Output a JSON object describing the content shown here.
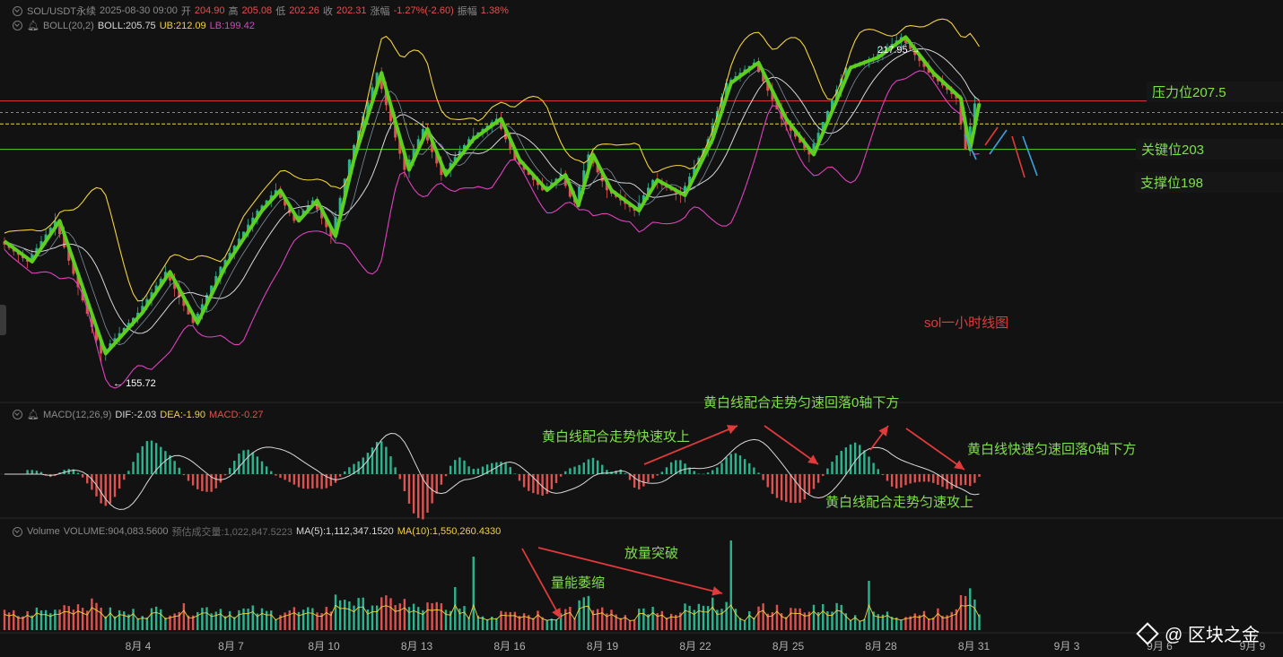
{
  "header": {
    "symbol": "SOL/USDT永续",
    "datetime": "2025-08-30 09:00",
    "open_label": "开",
    "open": "204.90",
    "high_label": "高",
    "high": "205.08",
    "low_label": "低",
    "low": "202.26",
    "close_label": "收",
    "close": "202.31",
    "change_label": "涨幅",
    "change": "-1.27%(-2.60)",
    "amplitude_label": "振幅",
    "amplitude": "1.38%"
  },
  "boll": {
    "name": "BOLL(20,2)",
    "mid": "BOLL:205.75",
    "ub": "UB:212.09",
    "lb": "LB:199.42"
  },
  "macd": {
    "name": "MACD(12,26,9)",
    "dif": "DIF:-2.03",
    "dea": "DEA:-1.90",
    "macd": "MACD:-0.27"
  },
  "volume": {
    "name": "Volume",
    "value": "VOLUME:904,083.5600",
    "est": "预估成交量:1,022,847.5223",
    "ma5": "MA(5):1,112,347.1520",
    "ma10": "MA(10):1,550,260.4330"
  },
  "levels": {
    "resistance": "压力位207.5",
    "key": "关键位203",
    "support": "支撑位198"
  },
  "price_marks": {
    "high": "217.95",
    "low": "155.72"
  },
  "annotations": {
    "chart_title": "sol一小时线图",
    "macd_1": "黄白线配合走势快速攻上",
    "macd_2": "黄白线配合走势匀速回落0轴下方",
    "macd_3": "黄白线快速匀速回落0轴下方",
    "macd_4": "黄白线配合走势匀速攻上",
    "vol_1": "放量突破",
    "vol_2": "量能萎缩"
  },
  "x_axis": [
    "8月 4",
    "8月 7",
    "8月 10",
    "8月 13",
    "8月 16",
    "8月 19",
    "8月 22",
    "8月 25",
    "8月 28",
    "8月 31",
    "9月 3",
    "9月 6",
    "9月 9"
  ],
  "watermark": "@ 区块之金",
  "colors": {
    "background": "#121212",
    "trend": "#5fcf1f",
    "upper_band": "#f2d23c",
    "lower_band": "#e040c0",
    "mid_band": "#d8d8d8",
    "resistance_line": "#e03a3a",
    "key_line": "#f2d23c",
    "support_line": "#5fcf1f",
    "up": "#2bb58f",
    "down": "#e0524f",
    "annotation_green": "#7ee04a",
    "annotation_red": "#e03a3a"
  },
  "chart_data": {
    "type": "line",
    "title": "",
    "x_range": [
      "2025-08-02",
      "2025-09-09"
    ],
    "y_range": [
      150,
      222
    ],
    "series": [
      {
        "values": [
          [
            0,
            180
          ],
          [
            1.5,
            176
          ],
          [
            3,
            184
          ],
          [
            5.5,
            158
          ],
          [
            7.5,
            166
          ],
          [
            9,
            174
          ],
          [
            10.5,
            164
          ],
          [
            12,
            175
          ],
          [
            14,
            186
          ],
          [
            15,
            190
          ],
          [
            16,
            184
          ],
          [
            17,
            188
          ],
          [
            18,
            181
          ],
          [
            19,
            196
          ],
          [
            20.5,
            213
          ],
          [
            22,
            194
          ],
          [
            23,
            202
          ],
          [
            24,
            193
          ],
          [
            25.5,
            200
          ],
          [
            27,
            204
          ],
          [
            28,
            196
          ],
          [
            29.5,
            190
          ],
          [
            30.5,
            193
          ],
          [
            31.2,
            187
          ],
          [
            32,
            197
          ],
          [
            33,
            190
          ],
          [
            34.5,
            186
          ],
          [
            35.5,
            192
          ],
          [
            37,
            189
          ],
          [
            38.5,
            200
          ],
          [
            39.5,
            211
          ],
          [
            41,
            215
          ],
          [
            42.5,
            204
          ],
          [
            44,
            197
          ],
          [
            46,
            214
          ],
          [
            47.5,
            216
          ],
          [
            49,
            220
          ],
          [
            50.5,
            213
          ],
          [
            52,
            208
          ],
          [
            52.5,
            198
          ],
          [
            53,
            207
          ]
        ]
      }
    ],
    "levels": [
      {
        "value": 207.5
      },
      {
        "value": 203
      },
      {
        "value": 198
      }
    ]
  }
}
